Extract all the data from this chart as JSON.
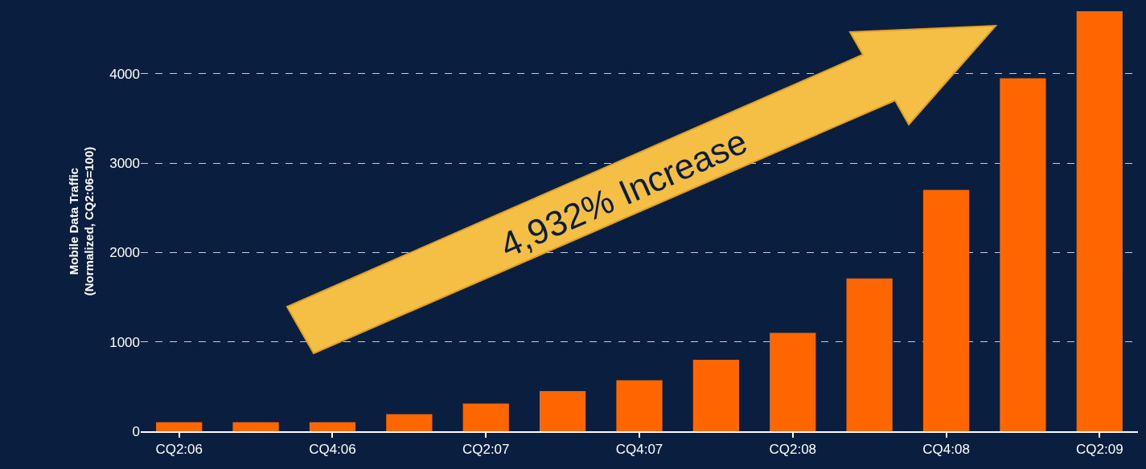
{
  "chart_data": {
    "type": "bar",
    "ylabel": "Mobile Data Traffic\n(Normalized, CQ2:06=100)",
    "categories": [
      "CQ2:06",
      null,
      "CQ4:06",
      null,
      "CQ2:07",
      null,
      "CQ4:07",
      null,
      "CQ2:08",
      null,
      "CQ4:08",
      null,
      "CQ2:09"
    ],
    "values": [
      100,
      100,
      100,
      190,
      310,
      450,
      570,
      800,
      1100,
      1710,
      2700,
      3950,
      4700
    ],
    "color": "#ff6600",
    "ylim": [
      0,
      4700
    ],
    "yticks": [
      0,
      1000,
      2000,
      3000,
      4000
    ],
    "grid": "y",
    "annotations": [
      "4,932% Increase"
    ]
  }
}
